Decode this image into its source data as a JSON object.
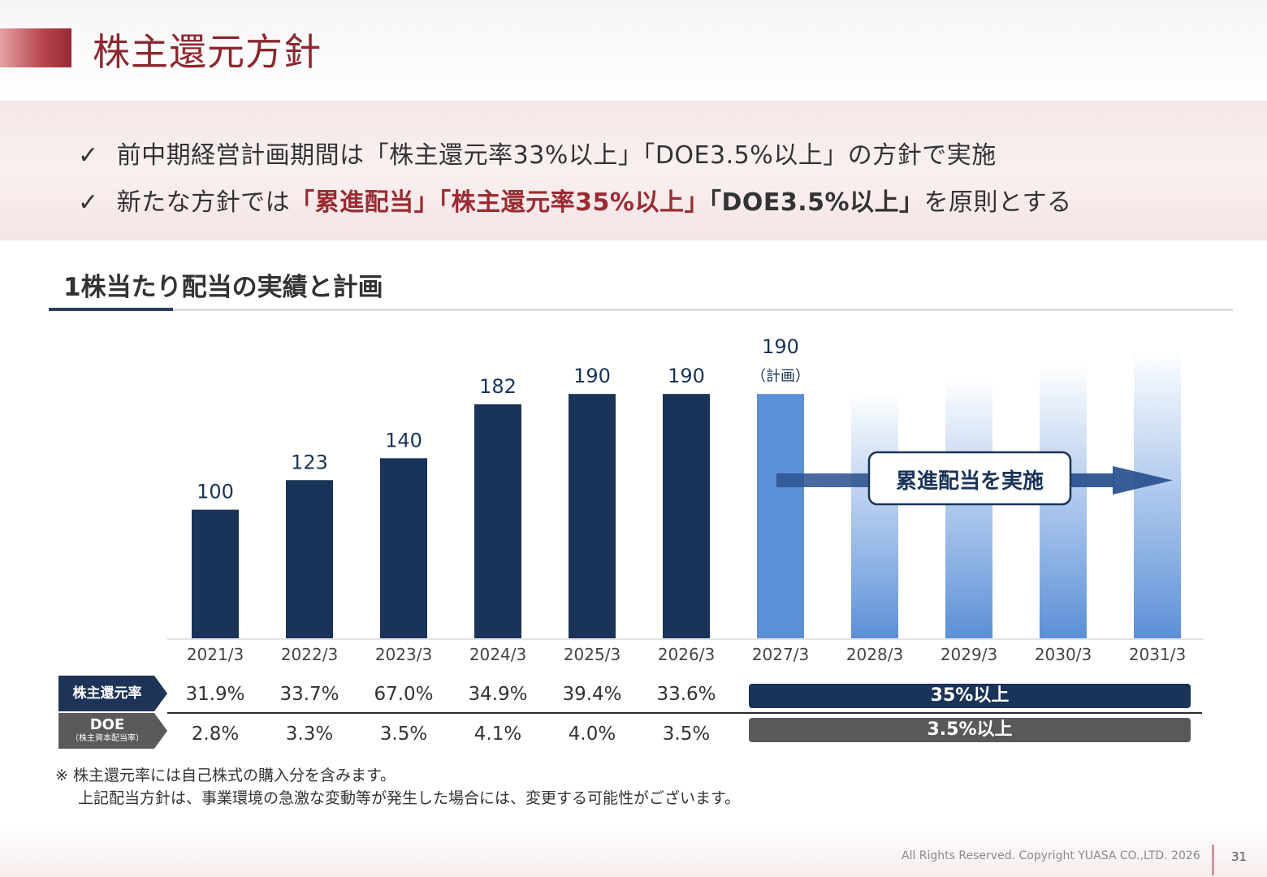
{
  "page": {
    "title": "株主還元方針",
    "bullets": [
      {
        "check": "✓",
        "text": "前中期経営計画期間は「株主還元率33%以上」「DOE3.5%以上」の方針で実施"
      },
      {
        "check": "✓",
        "prefix": "新たな方針では",
        "highlight_red": "「累進配当」「株主還元率35%以上」",
        "highlight_bold": "「DOE3.5%以上」",
        "suffix": "を原則とする"
      }
    ],
    "section_title": "1株当たり配当の実績と計画"
  },
  "chart_data": {
    "type": "bar",
    "categories": [
      "2021/3",
      "2022/3",
      "2023/3",
      "2024/3",
      "2025/3",
      "2026/3",
      "2027/3",
      "2028/3",
      "2029/3",
      "2030/3",
      "2031/3"
    ],
    "values": [
      100,
      123,
      140,
      182,
      190,
      190,
      190,
      null,
      null,
      null,
      null
    ],
    "data_labels": [
      "100",
      "123",
      "140",
      "182",
      "190",
      "190",
      "190",
      "",
      "",
      "",
      ""
    ],
    "plan_label": "（計画）",
    "arrow_label": "累進配当を実施",
    "ylim": [
      0,
      240
    ],
    "colors": {
      "actual": "#1a3358",
      "plan": "#5b8fd6",
      "future": "#6a9ade"
    }
  },
  "table": {
    "payout_label": "株主還元率",
    "payout_values": [
      "31.9%",
      "33.7%",
      "67.0%",
      "34.9%",
      "39.4%",
      "33.6%"
    ],
    "payout_target": "35%以上",
    "doe_label": "DOE",
    "doe_sublabel": "（株主資本配当率）",
    "doe_values": [
      "2.8%",
      "3.3%",
      "3.5%",
      "4.1%",
      "4.0%",
      "3.5%"
    ],
    "doe_target": "3.5%以上"
  },
  "notes": [
    "※ 株主還元率には自己株式の購入分を含みます。",
    "上記配当方針は、事業環境の急激な変動等が発生した場合には、変更する可能性がございます。"
  ],
  "footer": {
    "copyright": "All Rights Reserved. Copyright  YUASA CO.,LTD. 2026",
    "page_number": "31"
  }
}
